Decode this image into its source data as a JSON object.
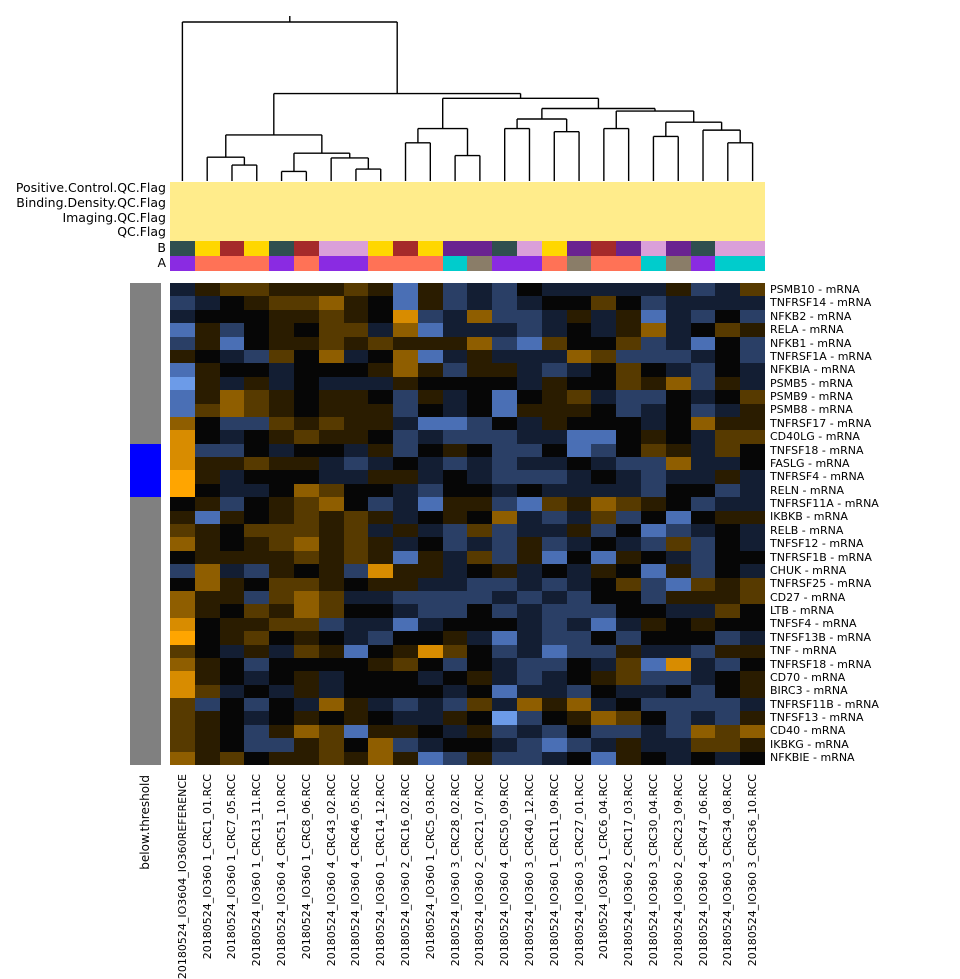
{
  "figure": {
    "background": "#FFFFFF",
    "sidebar_label": "below.threshold"
  },
  "annotation_rows": {
    "qc_band_labels": [
      "Positive.Control.QC.Flag",
      "Binding.Density.QC.Flag",
      "Imaging.QC.Flag",
      "QC.Flag"
    ],
    "qc_band_color": "#FFEC8B",
    "b_label": "B",
    "a_label": "A"
  },
  "row_sidebar": {
    "label": "below.threshold",
    "base_color": "#808080",
    "flag_color": "#0000FF",
    "flag_row_start": 12,
    "flag_row_count": 4
  },
  "chart_data": {
    "type": "heatmap",
    "legend_position": "none",
    "grid": false,
    "columns": [
      "20180524_IO3604_IO360REFERENCE",
      "20180524_IO360 1_CRC1_01.RCC",
      "20180524_IO360 1_CRC7_05.RCC",
      "20180524_IO360 1_CRC13_11.RCC",
      "20180524_IO360 4_CRC51_10.RCC",
      "20180524_IO360 1_CRC8_06.RCC",
      "20180524_IO360 4_CRC43_02.RCC",
      "20180524_IO360 4_CRC46_05.RCC",
      "20180524_IO360 1_CRC14_12.RCC",
      "20180524_IO360 2_CRC16_02.RCC",
      "20180524_IO360 1_CRC5_03.RCC",
      "20180524_IO360 3_CRC28_02.RCC",
      "20180524_IO360 2_CRC21_07.RCC",
      "20180524_IO360 4_CRC50_09.RCC",
      "20180524_IO360 3_CRC40_12.RCC",
      "20180524_IO360 1_CRC11_09.RCC",
      "20180524_IO360 3_CRC27_01.RCC",
      "20180524_IO360 1_CRC6_04.RCC",
      "20180524_IO360 2_CRC17_03.RCC",
      "20180524_IO360 3_CRC30_04.RCC",
      "20180524_IO360 2_CRC23_09.RCC",
      "20180524_IO360 4_CRC47_06.RCC",
      "20180524_IO360 3_CRC34_08.RCC",
      "20180524_IO360 3_CRC36_10.RCC"
    ],
    "rows": [
      "PSMB10 - mRNA",
      "TNFRSF14 - mRNA",
      "NFKB2 - mRNA",
      "RELA - mRNA",
      "NFKB1 - mRNA",
      "TNFRSF1A - mRNA",
      "NFKBIA - mRNA",
      "PSMB5 - mRNA",
      "PSMB9 - mRNA",
      "PSMB8 - mRNA",
      "TNFRSF17 - mRNA",
      "CD40LG - mRNA",
      "TNFSF18 - mRNA",
      "FASLG - mRNA",
      "TNFRSF4 - mRNA",
      "RELN - mRNA",
      "TNFRSF11A - mRNA",
      "IKBKB - mRNA",
      "RELB - mRNA",
      "TNFSF12 - mRNA",
      "TNFRSF1B - mRNA",
      "CHUK - mRNA",
      "TNFRSF25 - mRNA",
      "CD27 - mRNA",
      "LTB - mRNA",
      "TNFSF4 - mRNA",
      "TNFSF13B - mRNA",
      "TNF - mRNA",
      "TNFRSF18 - mRNA",
      "CD70 - mRNA",
      "BIRC3 - mRNA",
      "TNFRSF11B - mRNA",
      "TNFSF13 - mRNA",
      "CD40 - mRNA",
      "IKBKG - mRNA",
      "NFKBIE - mRNA"
    ],
    "value_scale_note": "relative expression, -4 (blue/low) to 5 (orange/high)",
    "value_color_scale": {
      "-4": "#6C9BE8",
      "-3": "#4A6FB5",
      "-2": "#2A3F66",
      "-1": "#131E33",
      "0": "#060606",
      "1": "#2A1C00",
      "2": "#573A00",
      "3": "#8F5E00",
      "4": "#D88C00",
      "5": "#FFA500"
    },
    "values": [
      [
        -1,
        1,
        2,
        2,
        1,
        1,
        1,
        2,
        1,
        -3,
        1,
        -2,
        -1,
        -2,
        0,
        -1,
        -1,
        -1,
        -1,
        -1,
        1,
        -2,
        -1,
        2
      ],
      [
        -2,
        -1,
        0,
        1,
        2,
        2,
        3,
        1,
        0,
        -3,
        1,
        -2,
        -1,
        -2,
        -1,
        0,
        0,
        2,
        0,
        -2,
        -1,
        -1,
        -1,
        -1
      ],
      [
        -1,
        0,
        0,
        0,
        1,
        1,
        2,
        1,
        0,
        4,
        -2,
        -1,
        3,
        -2,
        -2,
        -1,
        1,
        -1,
        1,
        -3,
        -1,
        -2,
        0,
        -2
      ],
      [
        -3,
        1,
        -2,
        0,
        1,
        0,
        2,
        2,
        -1,
        3,
        -3,
        -1,
        -1,
        -1,
        -2,
        -1,
        0,
        -1,
        1,
        3,
        -1,
        0,
        2,
        1
      ],
      [
        -2,
        1,
        -3,
        0,
        1,
        1,
        2,
        1,
        2,
        1,
        1,
        1,
        3,
        -2,
        -3,
        2,
        0,
        0,
        2,
        -2,
        -1,
        -3,
        0,
        -2
      ],
      [
        1,
        0,
        -1,
        -2,
        2,
        0,
        3,
        -1,
        0,
        3,
        -3,
        -1,
        1,
        -1,
        -1,
        -1,
        3,
        2,
        -2,
        -2,
        -2,
        -1,
        0,
        -2
      ],
      [
        -3,
        1,
        0,
        0,
        -1,
        0,
        0,
        0,
        1,
        3,
        1,
        -2,
        1,
        1,
        -1,
        -2,
        -1,
        0,
        2,
        0,
        -1,
        -2,
        0,
        -1
      ],
      [
        -4,
        1,
        -1,
        1,
        -1,
        0,
        -1,
        -1,
        -1,
        1,
        0,
        0,
        0,
        0,
        -1,
        1,
        0,
        0,
        2,
        1,
        3,
        -2,
        1,
        -1
      ],
      [
        -3,
        1,
        3,
        2,
        1,
        0,
        1,
        1,
        0,
        -2,
        1,
        -1,
        0,
        -3,
        0,
        1,
        2,
        -1,
        -2,
        -2,
        0,
        -1,
        0,
        2
      ],
      [
        -3,
        2,
        3,
        2,
        1,
        0,
        1,
        1,
        1,
        -2,
        0,
        -1,
        0,
        -3,
        1,
        1,
        1,
        0,
        -2,
        -1,
        0,
        -2,
        -1,
        1
      ],
      [
        3,
        0,
        -2,
        -2,
        2,
        1,
        2,
        1,
        1,
        -1,
        -3,
        -3,
        -2,
        0,
        -1,
        1,
        0,
        0,
        0,
        -1,
        0,
        3,
        1,
        1
      ],
      [
        4,
        0,
        -1,
        0,
        1,
        2,
        1,
        1,
        0,
        -2,
        -1,
        -2,
        -2,
        -2,
        -1,
        -1,
        -3,
        -3,
        0,
        1,
        0,
        -1,
        2,
        2
      ],
      [
        4,
        -2,
        -2,
        0,
        -1,
        0,
        0,
        -1,
        1,
        -2,
        0,
        1,
        0,
        -2,
        -2,
        0,
        -3,
        -2,
        0,
        2,
        1,
        -1,
        2,
        0
      ],
      [
        4,
        1,
        1,
        2,
        1,
        1,
        -1,
        -2,
        -1,
        0,
        -1,
        -2,
        -1,
        -2,
        -1,
        -1,
        0,
        -1,
        -2,
        -2,
        3,
        -1,
        -1,
        0
      ],
      [
        5,
        1,
        -1,
        0,
        0,
        0,
        -1,
        -1,
        1,
        1,
        -1,
        0,
        -1,
        -2,
        -2,
        -2,
        -1,
        0,
        -1,
        -2,
        -1,
        -1,
        1,
        -1
      ],
      [
        5,
        0,
        -1,
        -1,
        0,
        3,
        2,
        0,
        0,
        -1,
        -2,
        0,
        0,
        -1,
        0,
        -1,
        -1,
        -1,
        -1,
        -2,
        0,
        0,
        -2,
        -1
      ],
      [
        0,
        1,
        -2,
        0,
        1,
        2,
        3,
        0,
        -2,
        -1,
        -3,
        1,
        1,
        -2,
        -3,
        2,
        1,
        3,
        2,
        1,
        0,
        -2,
        -1,
        -1
      ],
      [
        1,
        -3,
        1,
        0,
        1,
        2,
        1,
        2,
        1,
        -1,
        0,
        1,
        0,
        3,
        -1,
        -2,
        -1,
        2,
        -2,
        0,
        -3,
        0,
        1,
        1
      ],
      [
        2,
        1,
        0,
        2,
        2,
        2,
        1,
        2,
        -1,
        1,
        -1,
        -2,
        2,
        -2,
        -1,
        -1,
        1,
        -2,
        0,
        -3,
        -2,
        -1,
        0,
        -1
      ],
      [
        3,
        1,
        0,
        1,
        2,
        3,
        1,
        2,
        1,
        -1,
        0,
        -2,
        -1,
        -2,
        1,
        -2,
        -1,
        0,
        -1,
        -2,
        2,
        -2,
        0,
        -1
      ],
      [
        0,
        1,
        1,
        1,
        1,
        2,
        1,
        2,
        1,
        -3,
        1,
        -1,
        2,
        -2,
        1,
        -3,
        0,
        -3,
        1,
        0,
        -1,
        -2,
        0,
        0
      ],
      [
        -2,
        3,
        -1,
        -2,
        1,
        0,
        1,
        -2,
        4,
        1,
        1,
        -1,
        0,
        1,
        -1,
        0,
        -1,
        1,
        0,
        -3,
        1,
        -2,
        0,
        -1
      ],
      [
        0,
        3,
        1,
        0,
        2,
        2,
        1,
        0,
        1,
        1,
        -1,
        -1,
        -2,
        -2,
        -1,
        -2,
        -1,
        0,
        2,
        -2,
        -3,
        2,
        1,
        2
      ],
      [
        3,
        1,
        1,
        -2,
        2,
        3,
        2,
        -1,
        -1,
        -2,
        -2,
        -2,
        -2,
        -1,
        -2,
        -1,
        -2,
        0,
        0,
        -2,
        1,
        1,
        1,
        2
      ],
      [
        3,
        1,
        0,
        2,
        1,
        3,
        2,
        0,
        0,
        -1,
        -2,
        -2,
        0,
        -2,
        -1,
        -2,
        -2,
        -2,
        0,
        0,
        -1,
        -1,
        2,
        0
      ],
      [
        4,
        0,
        1,
        1,
        2,
        2,
        -2,
        -1,
        -1,
        -3,
        -1,
        0,
        0,
        0,
        -1,
        -2,
        -1,
        -3,
        -1,
        1,
        0,
        1,
        0,
        0
      ],
      [
        5,
        0,
        1,
        2,
        0,
        1,
        0,
        -1,
        -2,
        0,
        0,
        1,
        -1,
        -3,
        -1,
        -2,
        -2,
        0,
        -2,
        0,
        0,
        0,
        -2,
        -1
      ],
      [
        2,
        0,
        -1,
        1,
        -1,
        2,
        1,
        -3,
        0,
        1,
        4,
        2,
        0,
        -2,
        -1,
        -3,
        -2,
        -2,
        1,
        -1,
        -1,
        -2,
        1,
        1
      ],
      [
        3,
        1,
        0,
        -2,
        0,
        0,
        0,
        0,
        1,
        2,
        0,
        -2,
        0,
        -1,
        -2,
        -2,
        0,
        -1,
        2,
        -3,
        4,
        -1,
        -2,
        0
      ],
      [
        4,
        1,
        0,
        -1,
        0,
        1,
        -1,
        0,
        0,
        0,
        -1,
        0,
        1,
        -1,
        -2,
        -1,
        0,
        1,
        2,
        -2,
        -2,
        -1,
        0,
        1
      ],
      [
        4,
        2,
        -1,
        0,
        -1,
        1,
        -1,
        0,
        0,
        0,
        0,
        -1,
        0,
        -3,
        -1,
        -1,
        -2,
        0,
        -1,
        -1,
        0,
        -2,
        0,
        1
      ],
      [
        2,
        -2,
        0,
        -2,
        0,
        -1,
        3,
        1,
        -1,
        -2,
        -1,
        -2,
        2,
        -1,
        3,
        1,
        3,
        -1,
        0,
        -2,
        -2,
        -2,
        -2,
        -1
      ],
      [
        2,
        1,
        0,
        -1,
        0,
        1,
        0,
        1,
        0,
        -1,
        -1,
        1,
        0,
        -4,
        -2,
        0,
        1,
        3,
        2,
        0,
        -2,
        -1,
        -2,
        1
      ],
      [
        2,
        1,
        0,
        -2,
        1,
        3,
        2,
        -3,
        1,
        1,
        0,
        -1,
        1,
        -2,
        -1,
        -2,
        0,
        -2,
        -2,
        -1,
        -2,
        3,
        2,
        3
      ],
      [
        2,
        1,
        0,
        -2,
        -2,
        1,
        2,
        0,
        3,
        -2,
        -1,
        0,
        0,
        -1,
        -2,
        -3,
        -2,
        -1,
        1,
        -1,
        -1,
        2,
        2,
        1
      ],
      [
        3,
        1,
        2,
        0,
        1,
        1,
        2,
        1,
        3,
        1,
        -3,
        -2,
        1,
        -2,
        -2,
        -1,
        0,
        -3,
        1,
        0,
        -1,
        0,
        -1,
        0
      ]
    ],
    "column_annotations": {
      "B": [
        "teal",
        "gold",
        "red",
        "gold",
        "teal",
        "red",
        "orchid",
        "orchid",
        "gold",
        "red",
        "gold",
        "purple",
        "purple",
        "teal",
        "orchid",
        "gold",
        "purple",
        "red",
        "purple",
        "orchid",
        "purple",
        "teal",
        "orchid",
        "orchid"
      ],
      "A": [
        "violet",
        "coral",
        "coral",
        "coral",
        "violet",
        "coral",
        "violet",
        "violet",
        "coral",
        "coral",
        "coral",
        "cyan",
        "taupe",
        "violet",
        "violet",
        "coral",
        "taupe",
        "coral",
        "coral",
        "cyan",
        "taupe",
        "violet",
        "cyan",
        "cyan"
      ],
      "B_colors": {
        "teal": "#2F4F4F",
        "gold": "#FFD700",
        "red": "#A52A2A",
        "orchid": "#DA9FD9",
        "purple": "#6A2390"
      },
      "A_colors": {
        "violet": "#8A2BE2",
        "coral": "#FF7256",
        "cyan": "#00CCCC",
        "taupe": "#8A7D68"
      },
      "QC_flags_all_pass_color": "#FFEC8B"
    },
    "below_threshold_rows": [
      "TNFSF18 - mRNA",
      "FASLG - mRNA",
      "TNFRSF4 - mRNA",
      "RELN - mRNA"
    ],
    "dendrogram": {
      "h": 1.0,
      "c": [
        0,
        {
          "h": 0.55,
          "c": [
            {
              "h": 0.29,
              "c": [
                {
                  "h": 0.15,
                  "c": [
                    1,
                    {
                      "h": 0.1,
                      "c": [
                        2,
                        3
                      ]
                    }
                  ]
                },
                {
                  "h": 0.175,
                  "c": [
                    {
                      "h": 0.06,
                      "c": [
                        4,
                        5
                      ]
                    },
                    {
                      "h": 0.145,
                      "c": [
                        6,
                        {
                          "h": 0.075,
                          "c": [
                            7,
                            8
                          ]
                        }
                      ]
                    }
                  ]
                }
              ]
            },
            {
              "h": 0.52,
              "c": [
                {
                  "h": 0.33,
                  "c": [
                    {
                      "h": 0.24,
                      "c": [
                        9,
                        10
                      ]
                    },
                    {
                      "h": 0.16,
                      "c": [
                        11,
                        12
                      ]
                    }
                  ]
                },
                {
                  "h": 0.456,
                  "c": [
                    {
                      "h": 0.39,
                      "c": [
                        {
                          "h": 0.33,
                          "c": [
                            13,
                            14
                          ]
                        },
                        {
                          "h": 0.31,
                          "c": [
                            15,
                            16
                          ]
                        }
                      ]
                    },
                    {
                      "h": 0.44,
                      "c": [
                        {
                          "h": 0.33,
                          "c": [
                            17,
                            18
                          ]
                        },
                        {
                          "h": 0.37,
                          "c": [
                            {
                              "h": 0.28,
                              "c": [
                                19,
                                20
                              ]
                            },
                            {
                              "h": 0.32,
                              "c": [
                                21,
                                {
                                  "h": 0.24,
                                  "c": [
                                    22,
                                    23
                                  ]
                                }
                              ]
                            }
                          ]
                        }
                      ]
                    }
                  ]
                }
              ]
            }
          ]
        }
      ]
    }
  }
}
